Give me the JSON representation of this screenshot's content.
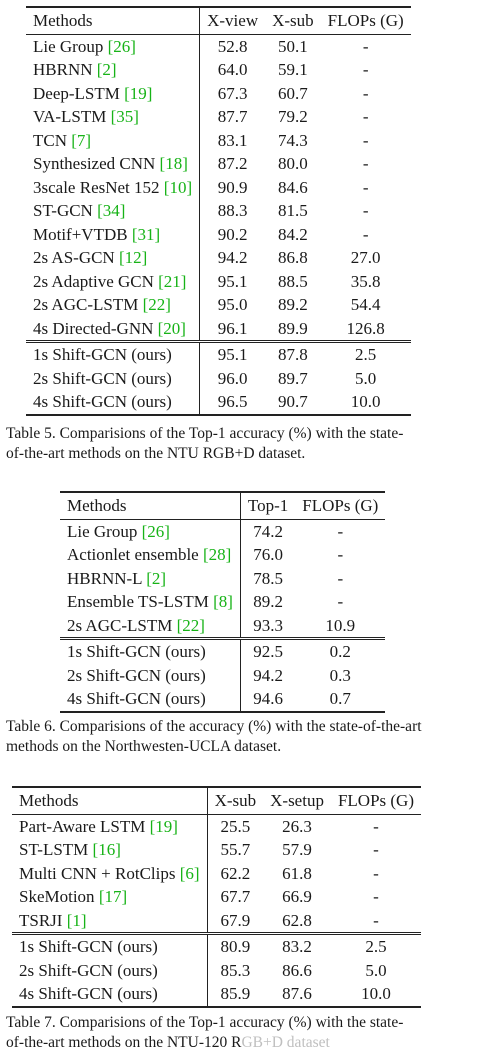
{
  "table5": {
    "headers": [
      "Methods",
      "X-view",
      "X-sub",
      "FLOPs (G)"
    ],
    "rows": [
      {
        "name": "Lie Group ",
        "ref": "[26]",
        "v": [
          "52.8",
          "50.1",
          "-"
        ]
      },
      {
        "name": "HBRNN ",
        "ref": "[2]",
        "v": [
          "64.0",
          "59.1",
          "-"
        ]
      },
      {
        "name": "Deep-LSTM ",
        "ref": "[19]",
        "v": [
          "67.3",
          "60.7",
          "-"
        ]
      },
      {
        "name": "VA-LSTM ",
        "ref": "[35]",
        "v": [
          "87.7",
          "79.2",
          "-"
        ]
      },
      {
        "name": "TCN ",
        "ref": "[7]",
        "v": [
          "83.1",
          "74.3",
          "-"
        ]
      },
      {
        "name": "Synthesized CNN ",
        "ref": "[18]",
        "v": [
          "87.2",
          "80.0",
          "-"
        ]
      },
      {
        "name": "3scale ResNet 152 ",
        "ref": "[10]",
        "v": [
          "90.9",
          "84.6",
          "-"
        ]
      },
      {
        "name": "ST-GCN ",
        "ref": "[34]",
        "v": [
          "88.3",
          "81.5",
          "-"
        ]
      },
      {
        "name": "Motif+VTDB ",
        "ref": "[31]",
        "v": [
          "90.2",
          "84.2",
          "-"
        ]
      },
      {
        "name": "2s AS-GCN ",
        "ref": "[12]",
        "v": [
          "94.2",
          "86.8",
          "27.0"
        ]
      },
      {
        "name": "2s Adaptive GCN ",
        "ref": "[21]",
        "v": [
          "95.1",
          "88.5",
          "35.8"
        ]
      },
      {
        "name": "2s AGC-LSTM ",
        "ref": "[22]",
        "v": [
          "95.0",
          "89.2",
          "54.4"
        ]
      },
      {
        "name": "4s Directed-GNN ",
        "ref": "[20]",
        "v": [
          "96.1",
          "89.9",
          "126.8"
        ]
      }
    ],
    "ours": [
      {
        "name": "1s Shift-GCN (ours)",
        "v": [
          "95.1",
          "87.8",
          "2.5"
        ]
      },
      {
        "name": "2s Shift-GCN (ours)",
        "v": [
          "96.0",
          "89.7",
          "5.0"
        ]
      },
      {
        "name": "4s Shift-GCN (ours)",
        "v": [
          "96.5",
          "90.7",
          "10.0"
        ]
      }
    ],
    "caption_l1": "Table 5. Comparisions of the Top-1 accuracy (%) with the state-",
    "caption_l2": "of-the-art methods on the NTU RGB+D dataset."
  },
  "table6": {
    "headers": [
      "Methods",
      "Top-1",
      "FLOPs (G)"
    ],
    "rows": [
      {
        "name": "Lie Group ",
        "ref": "[26]",
        "v": [
          "74.2",
          "-"
        ]
      },
      {
        "name": "Actionlet ensemble ",
        "ref": "[28]",
        "v": [
          "76.0",
          "-"
        ]
      },
      {
        "name": "HBRNN-L ",
        "ref": "[2]",
        "v": [
          "78.5",
          "-"
        ]
      },
      {
        "name": "Ensemble TS-LSTM ",
        "ref": "[8]",
        "v": [
          "89.2",
          "-"
        ]
      },
      {
        "name": "2s AGC-LSTM ",
        "ref": "[22]",
        "v": [
          "93.3",
          "10.9"
        ]
      }
    ],
    "ours": [
      {
        "name": "1s Shift-GCN (ours)",
        "v": [
          "92.5",
          "0.2"
        ]
      },
      {
        "name": "2s Shift-GCN (ours)",
        "v": [
          "94.2",
          "0.3"
        ]
      },
      {
        "name": "4s Shift-GCN (ours)",
        "v": [
          "94.6",
          "0.7"
        ]
      }
    ],
    "caption_l1": "Table 6. Comparisions of the accuracy (%) with the state-of-the-art",
    "caption_l2": "methods on the Northwesten-UCLA dataset."
  },
  "table7": {
    "headers": [
      "Methods",
      "X-sub",
      "X-setup",
      "FLOPs (G)"
    ],
    "rows": [
      {
        "name": "Part-Aware LSTM ",
        "ref": "[19]",
        "v": [
          "25.5",
          "26.3",
          "-"
        ]
      },
      {
        "name": "ST-LSTM ",
        "ref": "[16]",
        "v": [
          "55.7",
          "57.9",
          "-"
        ]
      },
      {
        "name": "Multi CNN + RotClips ",
        "ref": "[6]",
        "v": [
          "62.2",
          "61.8",
          "-"
        ]
      },
      {
        "name": "SkeMotion ",
        "ref": "[17]",
        "v": [
          "67.7",
          "66.9",
          "-"
        ]
      },
      {
        "name": "TSRJI ",
        "ref": "[1]",
        "v": [
          "67.9",
          "62.8",
          "-"
        ]
      }
    ],
    "ours": [
      {
        "name": "1s Shift-GCN (ours)",
        "v": [
          "80.9",
          "83.2",
          "2.5"
        ]
      },
      {
        "name": "2s Shift-GCN (ours)",
        "v": [
          "85.3",
          "86.6",
          "5.0"
        ]
      },
      {
        "name": "4s Shift-GCN (ours)",
        "v": [
          "85.9",
          "87.6",
          "10.0"
        ]
      }
    ],
    "caption_l1": "Table 7. Comparisions of the Top-1 accuracy (%) with the state-",
    "caption_l2a": "of-the-art methods on the NTU-120 R",
    "caption_l2b": "GB+D dataset (faded watermark)"
  }
}
